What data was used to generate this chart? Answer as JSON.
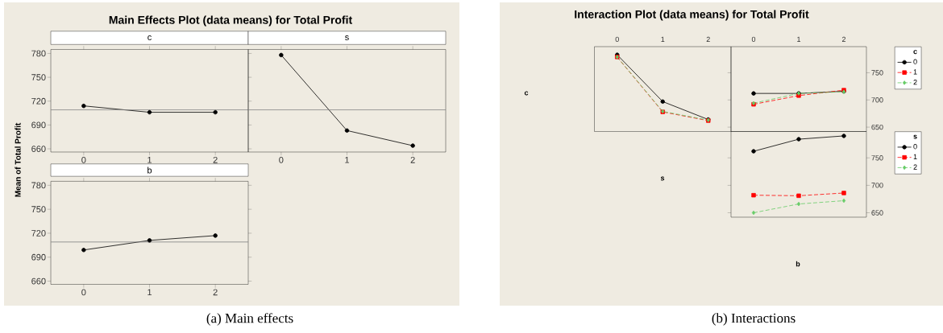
{
  "chart_data": [
    {
      "type": "line",
      "title": "Main Effects Plot (data means) for Total Profit",
      "subtitle": "c",
      "ylabel": "Mean of Total Profit",
      "x": [
        0,
        1,
        2
      ],
      "values": [
        714,
        706,
        706
      ],
      "color": "#000000",
      "marker": "circle",
      "xlim": [
        -0.5,
        2.5
      ],
      "xticks": [
        0,
        1,
        2
      ],
      "ylim": [
        656,
        785
      ],
      "yticks": [
        660,
        690,
        720,
        750,
        780
      ],
      "ref_lines": [
        {
          "axis": "y",
          "value": 709,
          "color": "#808080"
        }
      ]
    },
    {
      "type": "line",
      "subtitle": "s",
      "x": [
        0,
        1,
        2
      ],
      "values": [
        778,
        683,
        664
      ],
      "color": "#000000",
      "marker": "circle",
      "xlim": [
        -0.5,
        2.5
      ],
      "xticks": [
        0,
        1,
        2
      ],
      "ylim": [
        656,
        785
      ],
      "yticks": [
        660,
        690,
        720,
        750,
        780
      ],
      "tick_labels": "x",
      "ref_lines": [
        {
          "axis": "y",
          "value": 709,
          "color": "#808080"
        }
      ]
    },
    {
      "type": "line",
      "subtitle": "b",
      "x": [
        0,
        1,
        2
      ],
      "values": [
        699,
        711,
        717
      ],
      "color": "#000000",
      "marker": "circle",
      "xlim": [
        -0.5,
        2.5
      ],
      "xticks": [
        0,
        1,
        2
      ],
      "ylim": [
        656,
        785
      ],
      "yticks": [
        660,
        690,
        720,
        750,
        780
      ],
      "ref_lines": [
        {
          "axis": "y",
          "value": 709,
          "color": "#808080"
        }
      ],
      "annotations": [
        "(a) Main effects"
      ]
    },
    {
      "type": "line",
      "title": "Interaction Plot (data means) for Total Profit",
      "ylabel": "c",
      "x": [
        0,
        1,
        2
      ],
      "xlim": [
        -0.5,
        2.5
      ],
      "xticks": [
        0,
        1,
        2
      ],
      "ylim": [
        642,
        798
      ],
      "yticks": [
        650,
        700,
        750
      ],
      "tick_labels": "x",
      "annotations": [
        "(b) Interactions"
      ],
      "series": [
        {
          "color": "#000000",
          "marker": "circle",
          "line_style": "solid",
          "values": [
            783,
            697,
            664
          ]
        },
        {
          "color": "#ff0000",
          "marker": "square",
          "line_style": "dashed",
          "values": [
            779,
            678,
            662
          ]
        },
        {
          "color": "#66cc66",
          "marker": "diamond",
          "line_style": "dashed",
          "values": [
            779,
            679,
            663
          ]
        }
      ]
    },
    {
      "type": "line",
      "legend_title": "c",
      "legend": "right",
      "x": [
        0,
        1,
        2
      ],
      "xlim": [
        -0.5,
        2.5
      ],
      "xticks": [
        0,
        1,
        2
      ],
      "ylim": [
        642,
        798
      ],
      "yticks": [
        650,
        700,
        750
      ],
      "series": [
        {
          "name": "0",
          "color": "#000000",
          "marker": "circle",
          "line_style": "solid",
          "values": [
            712,
            712,
            716
          ]
        },
        {
          "name": "1",
          "color": "#ff0000",
          "marker": "square",
          "line_style": "dashed",
          "values": [
            692,
            708,
            718
          ]
        },
        {
          "name": "2",
          "color": "#66cc66",
          "marker": "diamond",
          "line_style": "dashed",
          "values": [
            694,
            712,
            715
          ]
        }
      ]
    },
    {
      "type": "line",
      "xlabel": "b",
      "ylabel": "s",
      "legend_title": "s",
      "legend": "right",
      "x": [
        0,
        1,
        2
      ],
      "xlim": [
        -0.5,
        2.5
      ],
      "xticks": [
        0,
        1,
        2
      ],
      "ylim": [
        642,
        798
      ],
      "yticks": [
        650,
        700,
        750
      ],
      "tick_labels": "y",
      "series": [
        {
          "name": "0",
          "color": "#000000",
          "marker": "circle",
          "line_style": "solid",
          "values": [
            762,
            784,
            790
          ]
        },
        {
          "name": "1",
          "color": "#ff0000",
          "marker": "square",
          "line_style": "dashed",
          "values": [
            682,
            681,
            686
          ]
        },
        {
          "name": "2",
          "color": "#66cc66",
          "marker": "diamond",
          "line_style": "dashed",
          "values": [
            650,
            666,
            672
          ]
        }
      ]
    }
  ]
}
